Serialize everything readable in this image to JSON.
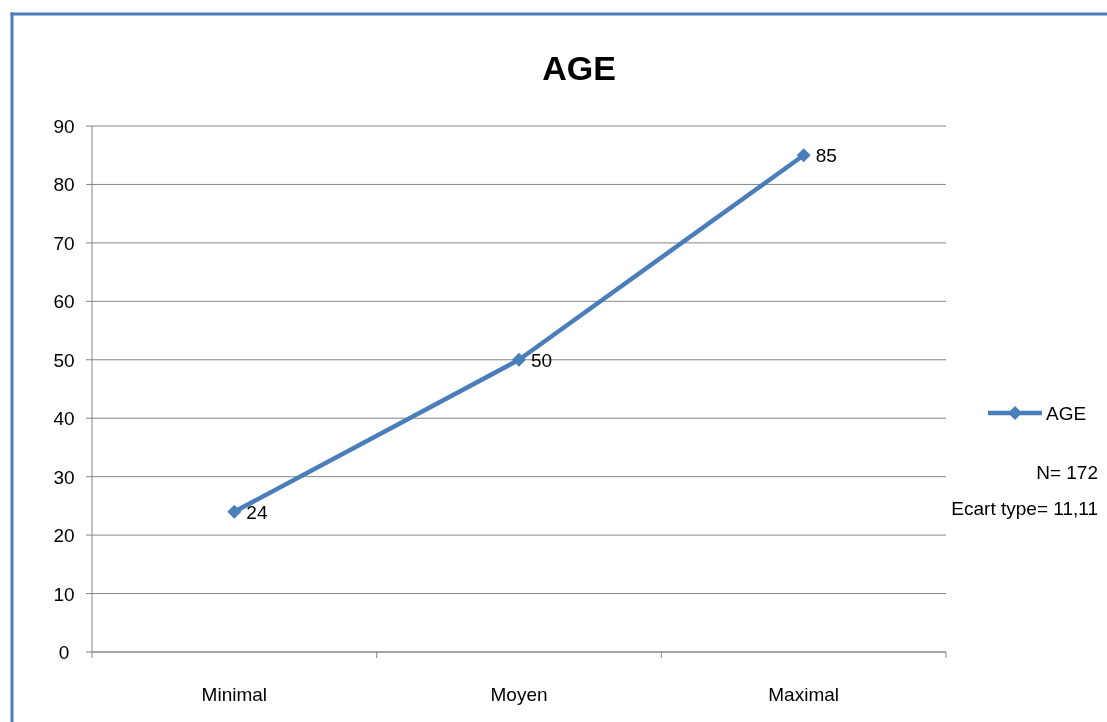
{
  "chart_data": {
    "type": "line",
    "title": "AGE",
    "categories": [
      "Minimal",
      "Moyen",
      "Maximal"
    ],
    "series": [
      {
        "name": "AGE",
        "color": "#4a7ebb",
        "values": [
          24,
          50,
          85
        ]
      }
    ],
    "ylim": [
      0,
      90
    ],
    "yticks": [
      0,
      10,
      20,
      30,
      40,
      50,
      60,
      70,
      80,
      90
    ],
    "grid": "y",
    "legend": "right",
    "marker": "diamond",
    "data_labels": true,
    "annotations": [
      "N= 172",
      "Ecart type= 11,11"
    ]
  }
}
